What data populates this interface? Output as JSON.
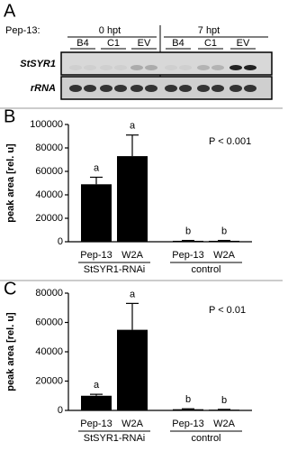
{
  "panel_a": {
    "label": "A",
    "treatment_label": "Pep-13:",
    "timepoints": [
      "0 hpt",
      "7 hpt"
    ],
    "lanes": [
      "B4",
      "C1",
      "EV",
      "B4",
      "C1",
      "EV"
    ],
    "rows": [
      "StSYR1",
      "rRNA"
    ]
  },
  "chart_data": [
    {
      "type": "bar",
      "panel_label": "B",
      "ylabel": "peak area [rel. u]",
      "annotation": "P < 0.001",
      "categories": [
        "Pep-13",
        "W2A",
        "Pep-13",
        "W2A"
      ],
      "values": [
        49000,
        73000,
        800,
        800
      ],
      "errors": [
        6000,
        18000,
        300,
        300
      ],
      "letters": [
        "a",
        "a",
        "b",
        "b"
      ],
      "group_labels": [
        "StSYR1-RNAi",
        "control"
      ],
      "color": "#000000",
      "ylim": [
        0,
        100000
      ],
      "yticks": [
        0,
        20000,
        40000,
        60000,
        80000,
        100000
      ]
    },
    {
      "type": "bar",
      "panel_label": "C",
      "ylabel": "peak area [rel. u]",
      "annotation": "P < 0.01",
      "categories": [
        "Pep-13",
        "W2A",
        "Pep-13",
        "W2A"
      ],
      "values": [
        10000,
        55000,
        800,
        500
      ],
      "errors": [
        1000,
        18000,
        300,
        200
      ],
      "letters": [
        "a",
        "a",
        "b",
        "b"
      ],
      "group_labels": [
        "StSYR1-RNAi",
        "control"
      ],
      "color": "#000000",
      "ylim": [
        0,
        80000
      ],
      "yticks": [
        0,
        20000,
        40000,
        60000,
        80000
      ]
    }
  ]
}
